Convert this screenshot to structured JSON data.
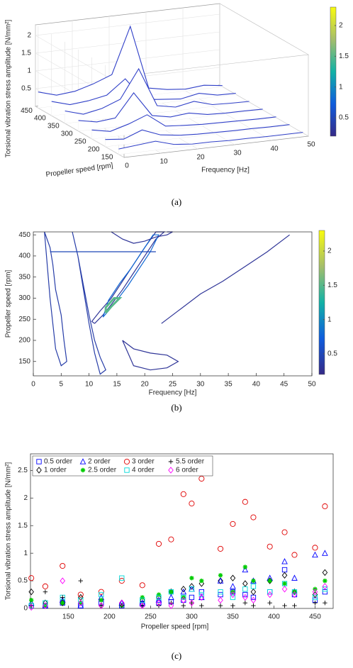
{
  "chart_data": [
    {
      "type": "waterfall",
      "caption": "(a)",
      "xlabel": "Frequency [Hz]",
      "ylabel": "Propeller speed [rpm]",
      "zlabel": "Torsional vibration stress amplitude [N/mm²]",
      "xlim": [
        0,
        50
      ],
      "xticks": [
        0,
        10,
        20,
        30,
        40,
        50
      ],
      "ylim": [
        130,
        460
      ],
      "yticks": [
        150,
        200,
        250,
        300,
        350,
        400,
        450
      ],
      "zlim": [
        0,
        2.3
      ],
      "zticks": [
        0.5,
        1,
        1.5,
        2
      ],
      "clim": [
        0.2,
        2.3
      ],
      "cticks": [
        0.5,
        1,
        1.5,
        2
      ],
      "color": "#3040c8",
      "x": [
        0,
        5,
        10,
        15,
        20,
        25,
        30,
        35,
        40,
        45,
        50
      ],
      "traces": [
        {
          "y": 450,
          "values": [
            0.45,
            0.3,
            0.35,
            0.5,
            0.7,
            2.0,
            0.2,
            0.1,
            0.05,
            0.1,
            0.03
          ]
        },
        {
          "y": 400,
          "values": [
            0.4,
            0.25,
            0.3,
            0.4,
            0.8,
            0.15,
            0.1,
            0.05,
            0.15,
            0.04,
            0.03
          ]
        },
        {
          "y": 350,
          "values": [
            0.35,
            0.2,
            0.3,
            0.5,
            1.3,
            0.2,
            0.1,
            0.2,
            0.05,
            0.03,
            0.02
          ]
        },
        {
          "y": 300,
          "values": [
            0.3,
            0.2,
            0.25,
            0.9,
            0.2,
            0.1,
            0.15,
            0.05,
            0.03,
            0.03,
            0.02
          ]
        },
        {
          "y": 250,
          "values": [
            0.25,
            0.15,
            0.3,
            0.5,
            0.12,
            0.08,
            0.05,
            0.04,
            0.03,
            0.02,
            0.02
          ]
        },
        {
          "y": 200,
          "values": [
            0.2,
            0.15,
            0.35,
            0.15,
            0.08,
            0.05,
            0.04,
            0.03,
            0.03,
            0.02,
            0.02
          ]
        },
        {
          "y": 150,
          "values": [
            0.15,
            0.2,
            0.25,
            0.1,
            0.05,
            0.05,
            0.03,
            0.03,
            0.02,
            0.02,
            0.02
          ]
        }
      ]
    },
    {
      "type": "contour",
      "caption": "(b)",
      "xlabel": "Frequency [Hz]",
      "ylabel": "Propeller speed [rpm]",
      "xlim": [
        0,
        50
      ],
      "xticks": [
        0,
        5,
        10,
        15,
        20,
        25,
        30,
        35,
        40,
        45,
        50
      ],
      "ylim": [
        116,
        457
      ],
      "yticks": [
        150,
        200,
        250,
        300,
        350,
        400,
        450
      ],
      "clim": [
        0.2,
        2.3
      ],
      "cticks": [
        0.5,
        1,
        1.5,
        2
      ],
      "contours": [
        {
          "level": 0.3,
          "x": [
            11,
            12.5,
            14,
            16,
            18,
            20,
            22,
            23.5,
            22,
            20,
            18,
            16,
            14,
            12,
            10.5,
            11
          ],
          "y": [
            240,
            260,
            285,
            320,
            360,
            400,
            440,
            457,
            457,
            420,
            380,
            340,
            300,
            270,
            245,
            240
          ]
        },
        {
          "level": 0.8,
          "x": [
            12.5,
            13.5,
            15,
            17,
            19,
            21,
            22.5,
            21.5,
            19.5,
            17.5,
            15.5,
            13.5,
            12.5
          ],
          "y": [
            255,
            270,
            295,
            330,
            370,
            410,
            450,
            450,
            410,
            370,
            335,
            295,
            255
          ]
        },
        {
          "level": 1.5,
          "x": [
            13,
            14,
            15.5,
            14.5,
            13,
            13
          ],
          "y": [
            265,
            280,
            300,
            300,
            278,
            265
          ]
        },
        {
          "level": 0.3,
          "x": [
            23,
            26,
            30,
            34,
            38,
            42,
            46
          ],
          "y": [
            240,
            270,
            310,
            340,
            375,
            410,
            450
          ]
        },
        {
          "level": 0.4,
          "x": [
            2,
            3,
            3.5,
            4,
            5,
            5.5,
            6,
            5,
            4,
            3,
            2
          ],
          "y": [
            457,
            420,
            380,
            320,
            260,
            200,
            150,
            140,
            180,
            300,
            457
          ]
        },
        {
          "level": 0.4,
          "x": [
            7,
            8,
            9,
            10,
            11,
            12,
            13,
            12,
            11,
            10,
            9,
            8,
            7
          ],
          "y": [
            457,
            400,
            330,
            260,
            200,
            160,
            130,
            120,
            170,
            240,
            320,
            400,
            457
          ]
        },
        {
          "level": 0.3,
          "x": [
            16,
            18,
            21,
            24,
            26,
            24,
            21,
            18,
            16
          ],
          "y": [
            200,
            180,
            170,
            165,
            150,
            135,
            130,
            140,
            200
          ]
        },
        {
          "level": 0.5,
          "x": [
            3,
            22
          ],
          "y": [
            410,
            410
          ]
        },
        {
          "level": 0.3,
          "x": [
            14,
            16,
            18,
            20,
            22,
            24,
            25,
            24
          ],
          "y": [
            457,
            440,
            430,
            435,
            445,
            450,
            457,
            457
          ]
        }
      ]
    },
    {
      "type": "scatter",
      "caption": "(c)",
      "xlabel": "Propeller speed [rpm]",
      "ylabel": "Torsional vibration stress amplitude [N/mm²]",
      "xlim": [
        104,
        472
      ],
      "xticks": [
        150,
        200,
        250,
        300,
        350,
        400,
        450
      ],
      "ylim": [
        0,
        2.8
      ],
      "yticks": [
        0,
        0.5,
        1,
        1.5,
        2,
        2.5
      ],
      "legend": "upper left",
      "x": [
        105,
        122,
        143,
        165,
        190,
        215,
        240,
        260,
        275,
        290,
        300,
        312,
        335,
        350,
        365,
        375,
        395,
        413,
        425,
        450,
        462
      ],
      "series": [
        {
          "name": "0.5 order",
          "color": "#0000ff",
          "marker": "square",
          "values": [
            0.05,
            0.05,
            0.1,
            0.05,
            0.1,
            0.05,
            0.08,
            0.1,
            0.12,
            0.15,
            0.2,
            0.3,
            0.25,
            0.3,
            0.25,
            0.2,
            0.3,
            0.7,
            0.25,
            0.15,
            0.3
          ]
        },
        {
          "name": "1 order",
          "color": "#000000",
          "marker": "diamond",
          "values": [
            0.3,
            0.1,
            0.1,
            0.2,
            0.05,
            0.1,
            0.15,
            0.2,
            0.3,
            0.35,
            0.4,
            0.45,
            0.5,
            0.55,
            0.45,
            0.3,
            0.5,
            0.6,
            0.3,
            0.25,
            0.65
          ]
        },
        {
          "name": "2 order",
          "color": "#0000ff",
          "marker": "triangle",
          "values": [
            0.1,
            0.05,
            0.15,
            0.05,
            0.2,
            0.1,
            0.1,
            0.15,
            0.2,
            0.3,
            0.35,
            0.2,
            0.5,
            0.4,
            0.7,
            0.5,
            0.55,
            0.85,
            0.55,
            0.97,
            1.0
          ]
        },
        {
          "name": "2.5 order",
          "color": "#00cc00",
          "marker": "asterisk",
          "values": [
            0.15,
            0.05,
            0.1,
            0.1,
            0.15,
            0.05,
            0.2,
            0.25,
            0.3,
            0.2,
            0.55,
            0.5,
            0.6,
            0.3,
            0.75,
            0.5,
            0.5,
            0.45,
            0.3,
            0.35,
            0.5
          ]
        },
        {
          "name": "3 order",
          "color": "#e00000",
          "marker": "circle",
          "values": [
            0.55,
            0.4,
            0.77,
            0.25,
            0.3,
            0.5,
            0.42,
            1.17,
            1.25,
            2.07,
            1.9,
            2.35,
            1.08,
            1.53,
            1.93,
            1.65,
            1.12,
            1.38,
            0.97,
            1.1,
            1.85
          ]
        },
        {
          "name": "4 order",
          "color": "#00d8d8",
          "marker": "square",
          "values": [
            0.05,
            0.1,
            0.2,
            0.15,
            0.25,
            0.55,
            0.15,
            0.2,
            0.3,
            0.2,
            0.35,
            0.25,
            0.3,
            0.2,
            0.35,
            0.4,
            0.3,
            0.45,
            0.3,
            0.2,
            0.35
          ]
        },
        {
          "name": "5.5 order",
          "color": "#000000",
          "marker": "plus",
          "values": [
            0.05,
            0.3,
            0.2,
            0.5,
            0.05,
            0.05,
            0.05,
            0.05,
            0.1,
            0.05,
            0.1,
            0.05,
            0.05,
            0.05,
            0.1,
            0.05,
            0.1,
            0.05,
            0.05,
            0.1,
            0.1
          ]
        },
        {
          "name": "6 order",
          "color": "#ff00ff",
          "marker": "diamond",
          "values": [
            0.02,
            0.05,
            0.5,
            0.1,
            0.05,
            0.1,
            0.05,
            0.1,
            0.05,
            0.15,
            0.1,
            0.2,
            0.15,
            0.25,
            0.2,
            0.15,
            0.25,
            0.35,
            0.25,
            0.3,
            0.4
          ]
        }
      ]
    }
  ]
}
